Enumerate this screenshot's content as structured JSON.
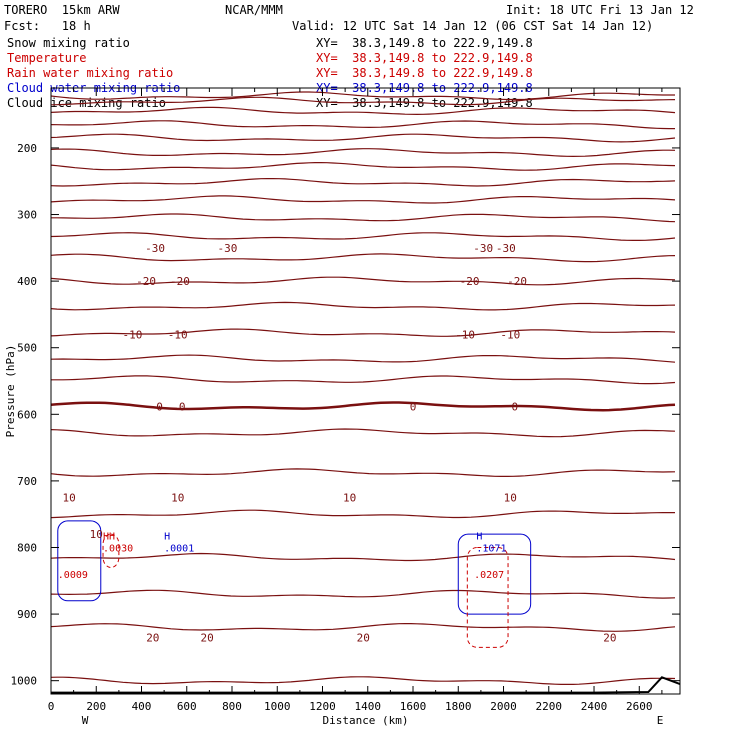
{
  "header": {
    "model": "TORERO  15km ARW",
    "org": "NCAR/MMM",
    "init": "Init: 18 UTC Fri 13 Jan 12",
    "fcst": "Fcst:   18 h",
    "valid": "Valid: 12 UTC Sat 14 Jan 12 (06 CST Sat 14 Jan 12)"
  },
  "legend": [
    {
      "label": "Snow mixing ratio",
      "xy": "XY=  38.3,149.8 to 222.9,149.8",
      "color": "#000000"
    },
    {
      "label": "Temperature",
      "xy": "XY=  38.3,149.8 to 222.9,149.8",
      "color": "#cc0000"
    },
    {
      "label": "Rain water mixing ratio",
      "xy": "XY=  38.3,149.8 to 222.9,149.8",
      "color": "#cc0000"
    },
    {
      "label": "Cloud water mixing ratio",
      "xy": "XY=  38.3,149.8 to 222.9,149.8",
      "color": "#0000cc"
    },
    {
      "label": "Cloud ice mixing ratio",
      "xy": "XY=  38.3,149.8 to 222.9,149.8",
      "color": "#000000"
    }
  ],
  "chart_data": {
    "type": "contour",
    "xlabel": "Distance (km)",
    "ylabel": "Pressure (hPa)",
    "xlim": [
      0,
      2780
    ],
    "ylim": [
      1020,
      110
    ],
    "x_ticks": [
      0,
      200,
      400,
      600,
      800,
      1000,
      1200,
      1400,
      1600,
      1800,
      2000,
      2200,
      2400,
      2600
    ],
    "y_ticks": [
      200,
      300,
      400,
      500,
      600,
      700,
      800,
      900,
      1000
    ],
    "x_ends": {
      "left": "W",
      "right": "E"
    },
    "temperature_label_rows": [
      {
        "label": "-30",
        "p": 350,
        "positions": [
          460,
          780,
          1910,
          2010
        ]
      },
      {
        "label": "-20",
        "p": 400,
        "positions": [
          420,
          570,
          1850,
          2060
        ]
      },
      {
        "label": "-10",
        "p": 480,
        "positions": [
          360,
          560,
          1830,
          2030
        ]
      },
      {
        "label": "0",
        "p": 588,
        "positions": [
          480,
          580,
          1600,
          2050
        ]
      },
      {
        "label": "10",
        "p": 725,
        "positions": [
          80,
          560,
          1320,
          2030
        ]
      },
      {
        "label": "10",
        "p": 780,
        "positions": [
          200
        ]
      },
      {
        "label": "20",
        "p": 935,
        "positions": [
          450,
          690,
          1380,
          2470
        ]
      }
    ],
    "temperature_isotherms_hpa": [
      122,
      130,
      145,
      165,
      185,
      207,
      228,
      252,
      278,
      305,
      333,
      365,
      400,
      438,
      478,
      517,
      548,
      588,
      628,
      688,
      750,
      815,
      870,
      920,
      1000
    ],
    "surface_pressure": {
      "x": [
        0,
        400,
        800,
        1200,
        1600,
        2000,
        2400,
        2640,
        2700,
        2780
      ],
      "p": [
        1018,
        1018,
        1018,
        1018,
        1018,
        1018,
        1018,
        1017,
        995,
        1005
      ]
    },
    "extrema": [
      {
        "mark": "HH",
        "value": ".0030",
        "x": 230,
        "p": 800,
        "color": "#cc0000"
      },
      {
        "mark": "H",
        "value": ".0001",
        "x": 500,
        "p": 800,
        "color": "#0000cc"
      },
      {
        "mark": "",
        "value": ".0009",
        "x": 30,
        "p": 840,
        "color": "#cc0000"
      },
      {
        "mark": "H",
        "value": ".1071",
        "x": 1880,
        "p": 800,
        "color": "#0000cc"
      },
      {
        "mark": "",
        "value": ".0207",
        "x": 1870,
        "p": 840,
        "color": "#cc0000"
      }
    ],
    "grid": false
  }
}
